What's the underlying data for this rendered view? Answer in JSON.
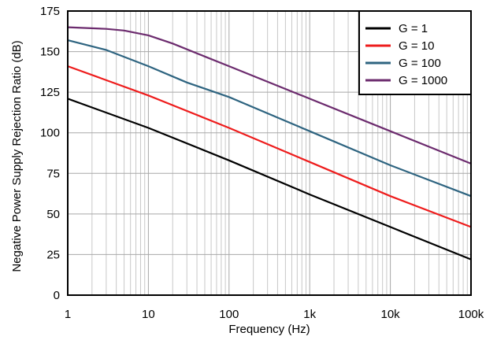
{
  "chart_data": {
    "type": "line",
    "title": "",
    "xlabel": "Frequency (Hz)",
    "ylabel": "Negative Power Supply Rejection Ratio (dB)",
    "x_scale": "log",
    "xlim": [
      1,
      100000
    ],
    "ylim": [
      0,
      175
    ],
    "x_ticks": [
      1,
      10,
      100,
      1000,
      10000,
      100000
    ],
    "x_tick_labels": [
      "1",
      "10",
      "100",
      "1k",
      "10k",
      "100k"
    ],
    "y_ticks": [
      0,
      25,
      50,
      75,
      100,
      125,
      150,
      175
    ],
    "y_tick_labels": [
      "0",
      "25",
      "50",
      "75",
      "100",
      "125",
      "150",
      "175"
    ],
    "grid": true,
    "legend_position": "top-right",
    "series": [
      {
        "name": "G = 1",
        "color": "#000000",
        "x": [
          1,
          10,
          100,
          1000,
          10000,
          100000
        ],
        "y": [
          121,
          103,
          83,
          62,
          42,
          22
        ]
      },
      {
        "name": "G = 10",
        "color": "#ee1c1c",
        "x": [
          1,
          10,
          100,
          1000,
          10000,
          100000
        ],
        "y": [
          141,
          123,
          103,
          82,
          61,
          42
        ]
      },
      {
        "name": "G = 100",
        "color": "#2e6480",
        "x": [
          1,
          3,
          10,
          30,
          100,
          1000,
          10000,
          100000
        ],
        "y": [
          157,
          151,
          141,
          131,
          122,
          101,
          80,
          61
        ]
      },
      {
        "name": "G = 1000",
        "color": "#6c2b6e",
        "x": [
          1,
          3,
          5,
          10,
          20,
          50,
          100,
          1000,
          10000,
          100000
        ],
        "y": [
          165,
          164,
          163,
          160,
          155,
          147,
          141,
          121,
          101,
          81
        ]
      }
    ]
  }
}
